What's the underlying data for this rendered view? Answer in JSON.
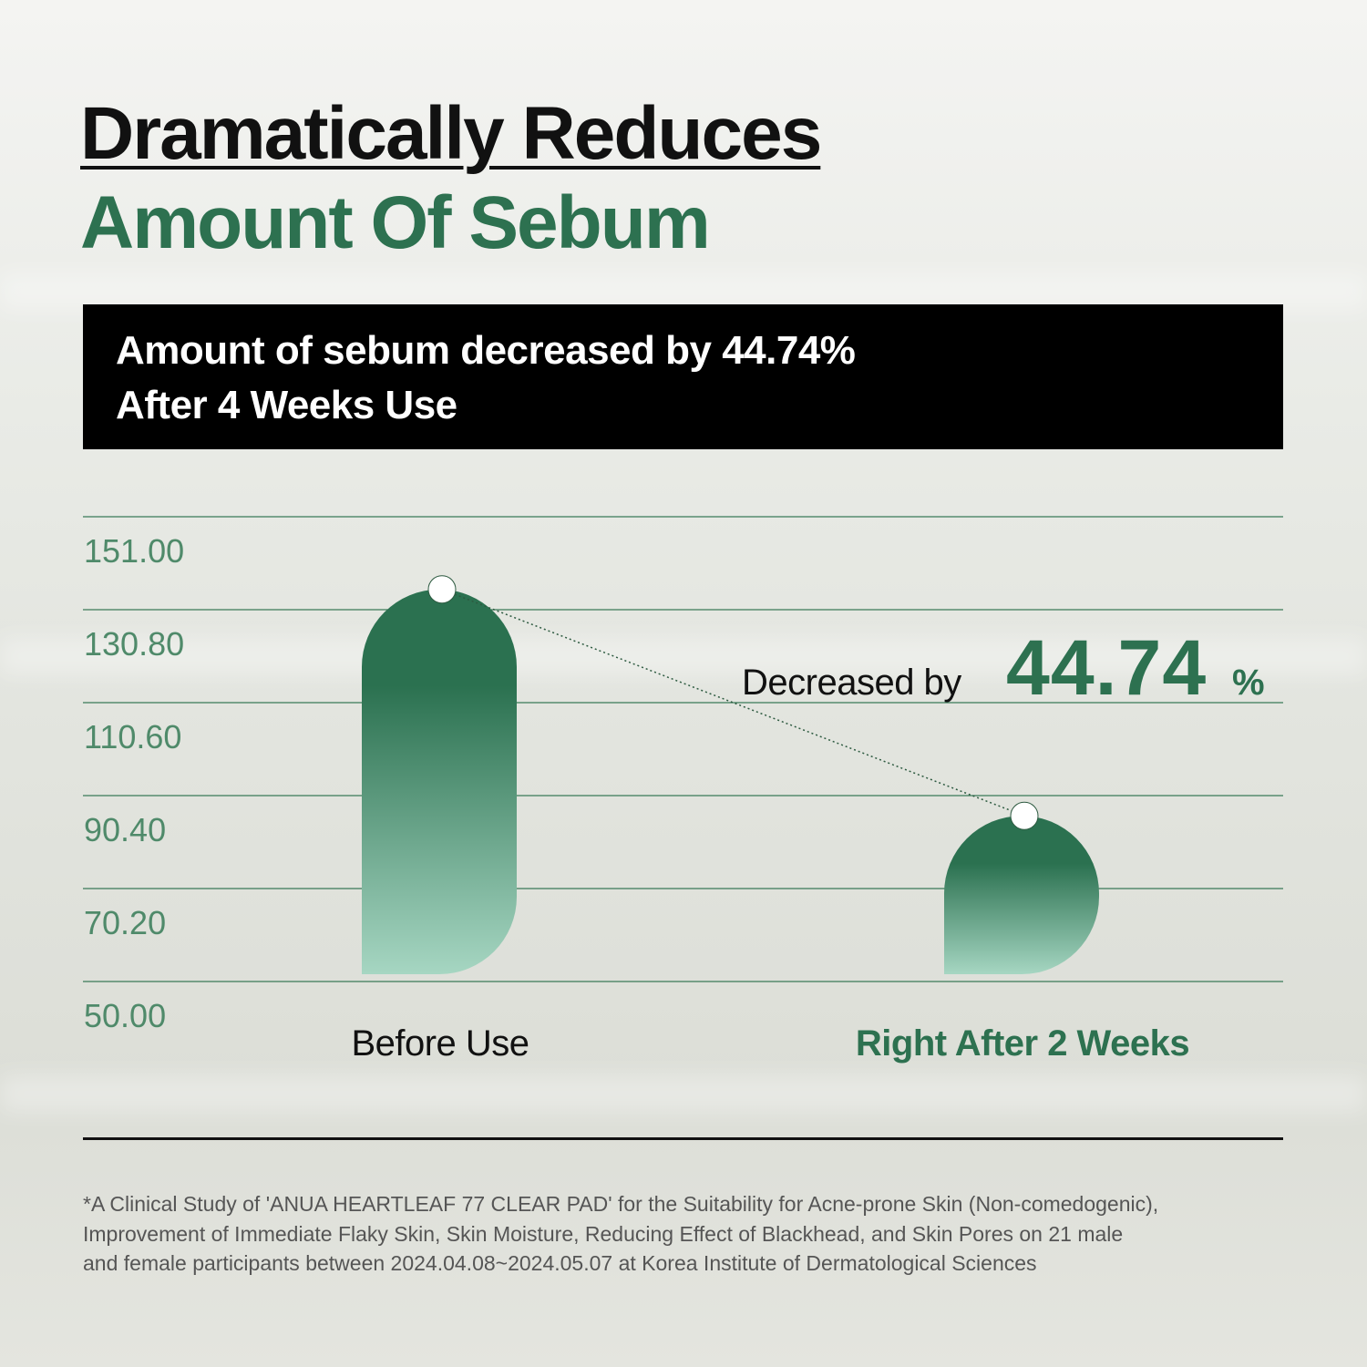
{
  "title_line1": "Dramatically Reduces",
  "title_line2": "Amount Of Sebum",
  "banner": {
    "line1": "Amount of sebum decreased by 44.74%",
    "line2": "After 4 Weeks Use"
  },
  "annotation": {
    "prefix": "Decreased by",
    "value": "44.74",
    "unit": "%"
  },
  "footnote": [
    "*A Clinical Study of 'ANUA HEARTLEAF 77 CLEAR PAD' for the Suitability for Acne-prone Skin (Non-comedogenic),",
    "Improvement of Immediate Flaky Skin, Skin Moisture, Reducing Effect of Blackhead, and Skin Pores on 21 male",
    "and female participants between 2024.04.08~2024.05.07 at Korea Institute of Dermatological Sciences"
  ],
  "colors": {
    "accent": "#2d7150",
    "bar_top": "#2b7150",
    "bar_bottom": "#a6d6c2",
    "text": "#111111"
  },
  "chart_data": {
    "type": "bar",
    "categories": [
      "Before Use",
      "Right After 2 Weeks"
    ],
    "values": [
      135.6,
      86.4
    ],
    "ylim": [
      50,
      151
    ],
    "yticks": [
      "151.00",
      "130.80",
      "110.60",
      "90.40",
      "70.20",
      "50.00"
    ],
    "ytick_values": [
      151,
      130.8,
      110.6,
      90.4,
      70.2,
      50
    ],
    "grid": true,
    "category_colors": [
      "#111111",
      "#2d7150"
    ]
  }
}
